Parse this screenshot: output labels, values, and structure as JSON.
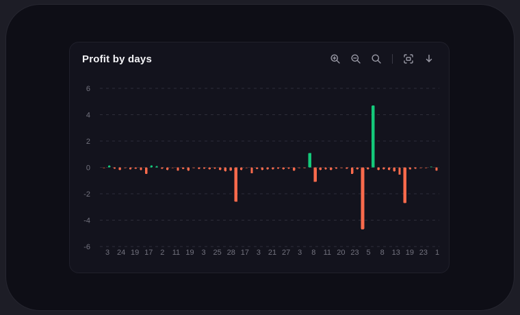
{
  "card": {
    "title": "Profit by days"
  },
  "toolbar": {
    "icons": [
      "zoom-in",
      "zoom-out",
      "selection-zoom",
      "reset-zoom",
      "download"
    ]
  },
  "chart_data": {
    "type": "bar",
    "title": "Profit by days",
    "xlabel": "",
    "ylabel": "",
    "ylim": [
      -6,
      6
    ],
    "grid": "dashed horizontal",
    "legend": "none",
    "y_ticks": [
      6,
      4,
      2,
      0,
      -2,
      -4,
      -6
    ],
    "x_labels": [
      "3",
      "24",
      "19",
      "17",
      "2",
      "11",
      "19",
      "3",
      "25",
      "28",
      "17",
      "3",
      "21",
      "27",
      "3",
      "8",
      "11",
      "20",
      "23",
      "5",
      "8",
      "13",
      "19",
      "23",
      "1"
    ],
    "values": [
      -0.05,
      0.15,
      -0.1,
      -0.2,
      -0.08,
      -0.15,
      -0.1,
      -0.2,
      -0.5,
      0.15,
      0.1,
      -0.1,
      -0.2,
      -0.08,
      -0.25,
      -0.12,
      -0.25,
      -0.08,
      -0.12,
      -0.1,
      -0.15,
      -0.1,
      -0.2,
      -0.3,
      -0.25,
      -2.6,
      -0.2,
      -0.05,
      -0.45,
      -0.12,
      -0.2,
      -0.15,
      -0.15,
      -0.1,
      -0.15,
      -0.1,
      -0.25,
      -0.05,
      -0.05,
      1.1,
      -1.1,
      -0.2,
      -0.15,
      -0.2,
      -0.1,
      -0.08,
      -0.1,
      -0.5,
      -0.15,
      -4.7,
      -0.15,
      4.7,
      -0.2,
      -0.15,
      -0.2,
      -0.3,
      -0.55,
      -2.7,
      -0.15,
      -0.1,
      -0.05,
      -0.08,
      0.05,
      -0.25
    ],
    "colors": {
      "positive": "#14c97a",
      "negative": "#f96a4c",
      "muted_positive": "#1f7a52",
      "muted_negative": "#8a3d2e",
      "grid": "#2e2e3a",
      "axis_text": "#73737f"
    }
  }
}
